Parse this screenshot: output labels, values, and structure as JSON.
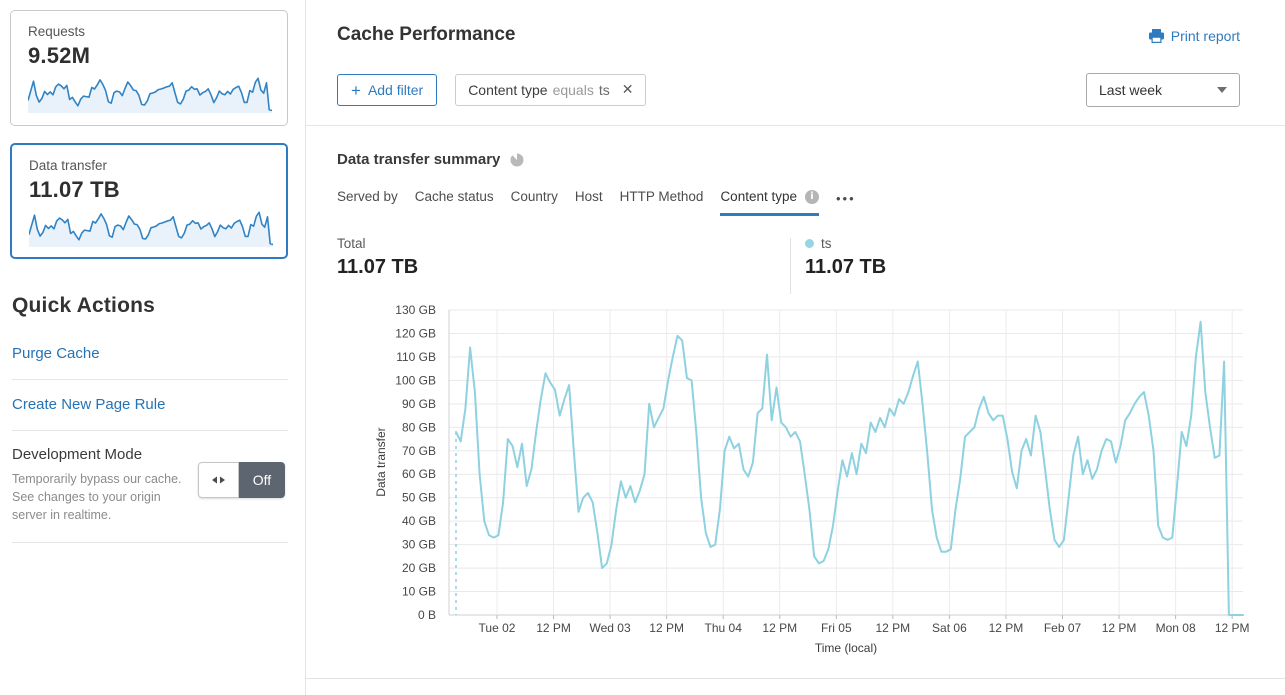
{
  "colors": {
    "accent": "#2f7bbf",
    "chart_line": "#8ed1e0",
    "spark_line": "#3183c4",
    "spark_fill": "#e9f2fa",
    "toggle_off_bg": "#5d6670",
    "legend_dot": "#97d5e3"
  },
  "sidebar": {
    "cards": [
      {
        "label": "Requests",
        "value": "9.52M",
        "selected": false,
        "spark": [
          40,
          78,
          114,
          60,
          34,
          48,
          75,
          63,
          73,
          62,
          92,
          103,
          96,
          85,
          98,
          44,
          52,
          35,
          20,
          45,
          57,
          55,
          53,
          90,
          84,
          100,
          119,
          101,
          78,
          35,
          30,
          70,
          76,
          73,
          59,
          86,
          111,
          97,
          80,
          78,
          60,
          25,
          23,
          38,
          66,
          69,
          73,
          82,
          84,
          88,
          92,
          95,
          108,
          69,
          33,
          27,
          45,
          76,
          80,
          93,
          83,
          85,
          61,
          70,
          75,
          85,
          62,
          32,
          50,
          76,
          66,
          62,
          75,
          65,
          83,
          90,
          95,
          70,
          33,
          33,
          78,
          72,
          110,
          125,
          80,
          68,
          108,
          5,
          2
        ]
      },
      {
        "label": "Data transfer",
        "value": "11.07 TB",
        "selected": true,
        "spark": [
          40,
          78,
          114,
          60,
          34,
          48,
          75,
          63,
          73,
          62,
          92,
          103,
          96,
          85,
          98,
          44,
          52,
          35,
          20,
          45,
          57,
          55,
          53,
          90,
          84,
          100,
          119,
          101,
          78,
          35,
          30,
          70,
          76,
          73,
          59,
          86,
          111,
          97,
          80,
          78,
          60,
          25,
          23,
          38,
          66,
          69,
          73,
          82,
          84,
          88,
          92,
          95,
          108,
          69,
          33,
          27,
          45,
          76,
          80,
          93,
          83,
          85,
          61,
          70,
          75,
          85,
          62,
          32,
          50,
          76,
          66,
          62,
          75,
          65,
          83,
          90,
          95,
          70,
          33,
          33,
          78,
          72,
          110,
          125,
          80,
          68,
          108,
          5,
          2
        ]
      }
    ],
    "quick_actions": {
      "title": "Quick Actions",
      "links": [
        "Purge Cache",
        "Create New Page Rule"
      ],
      "dev_mode": {
        "title": "Development Mode",
        "description": "Temporarily bypass our cache. See changes to your origin server in realtime.",
        "toggle_label": "Off"
      }
    }
  },
  "header": {
    "title": "Cache Performance",
    "print_label": "Print report"
  },
  "filters": {
    "add_label": "Add filter",
    "chip": {
      "field": "Content type",
      "operator": "equals",
      "value": "ts",
      "close_icon": "✕"
    },
    "range_value": "Last week"
  },
  "summary": {
    "title": "Data transfer summary",
    "tabs": [
      {
        "label": "Served by",
        "active": false
      },
      {
        "label": "Cache status",
        "active": false
      },
      {
        "label": "Country",
        "active": false
      },
      {
        "label": "Host",
        "active": false
      },
      {
        "label": "HTTP Method",
        "active": false
      },
      {
        "label": "Content type",
        "active": true,
        "info": true
      }
    ],
    "more_label": "•••",
    "total_label": "Total",
    "total_value": "11.07 TB",
    "legend": {
      "label": "ts",
      "value": "11.07 TB"
    }
  },
  "chart_data": {
    "type": "line",
    "title": "Data transfer summary",
    "ylabel": "Data transfer",
    "xlabel": "Time (local)",
    "unit": "GB",
    "ylim": [
      0,
      130
    ],
    "grid": true,
    "legend_position": "above-right",
    "y_ticks": [
      "0 B",
      "10 GB",
      "20 GB",
      "30 GB",
      "40 GB",
      "50 GB",
      "60 GB",
      "70 GB",
      "80 GB",
      "90 GB",
      "100 GB",
      "110 GB",
      "120 GB",
      "130 GB"
    ],
    "x_ticks": [
      "Tue 02",
      "12 PM",
      "Wed 03",
      "12 PM",
      "Thu 04",
      "12 PM",
      "Fri 05",
      "12 PM",
      "Sat 06",
      "12 PM",
      "Feb 07",
      "12 PM",
      "Mon 08",
      "12 PM"
    ],
    "x_tick_hours_offset": 8.7,
    "x_tick_interval_hours": 12,
    "points_are_hourly": true,
    "start_dashed_drop": true,
    "series": [
      {
        "name": "ts",
        "color": "#8ed1e0",
        "values": [
          78,
          74,
          88,
          114,
          95,
          60,
          40,
          34,
          33,
          34,
          48,
          75,
          72,
          63,
          73,
          55,
          62,
          78,
          92,
          103,
          99,
          96,
          85,
          92,
          98,
          70,
          44,
          50,
          52,
          48,
          35,
          20,
          22,
          30,
          45,
          57,
          50,
          55,
          48,
          53,
          60,
          90,
          80,
          84,
          88,
          100,
          110,
          119,
          117,
          101,
          100,
          78,
          50,
          35,
          29,
          30,
          45,
          70,
          76,
          71,
          73,
          62,
          59,
          65,
          86,
          88,
          111,
          83,
          97,
          82,
          80,
          76,
          78,
          74,
          60,
          45,
          25,
          22,
          23,
          28,
          38,
          53,
          66,
          59,
          69,
          60,
          73,
          69,
          82,
          78,
          84,
          80,
          88,
          85,
          92,
          90,
          95,
          102,
          108,
          90,
          69,
          45,
          33,
          27,
          27,
          28,
          45,
          58,
          76,
          78,
          80,
          88,
          93,
          86,
          83,
          85,
          85,
          75,
          61,
          54,
          70,
          75,
          68,
          85,
          78,
          62,
          45,
          32,
          29,
          32,
          50,
          68,
          76,
          60,
          66,
          58,
          62,
          70,
          75,
          74,
          65,
          72,
          83,
          86,
          90,
          93,
          95,
          85,
          70,
          38,
          33,
          32,
          33,
          55,
          78,
          72,
          85,
          110,
          125,
          95,
          80,
          67,
          68,
          108,
          0,
          0,
          0,
          0
        ]
      }
    ]
  }
}
